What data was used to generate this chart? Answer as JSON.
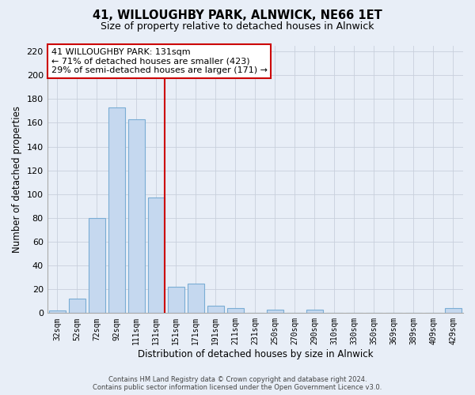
{
  "title": "41, WILLOUGHBY PARK, ALNWICK, NE66 1ET",
  "subtitle": "Size of property relative to detached houses in Alnwick",
  "xlabel": "Distribution of detached houses by size in Alnwick",
  "ylabel": "Number of detached properties",
  "bar_labels": [
    "32sqm",
    "52sqm",
    "72sqm",
    "92sqm",
    "111sqm",
    "131sqm",
    "151sqm",
    "171sqm",
    "191sqm",
    "211sqm",
    "231sqm",
    "250sqm",
    "270sqm",
    "290sqm",
    "310sqm",
    "330sqm",
    "350sqm",
    "369sqm",
    "389sqm",
    "409sqm",
    "429sqm"
  ],
  "bar_values": [
    2,
    12,
    80,
    173,
    163,
    97,
    22,
    25,
    6,
    4,
    0,
    3,
    0,
    3,
    0,
    0,
    0,
    0,
    0,
    0,
    4
  ],
  "bar_color": "#c5d8ef",
  "bar_edge_color": "#7aadd4",
  "vline_color": "#cc0000",
  "annotation_title": "41 WILLOUGHBY PARK: 131sqm",
  "annotation_line1": "← 71% of detached houses are smaller (423)",
  "annotation_line2": "29% of semi-detached houses are larger (171) →",
  "annotation_box_color": "#ffffff",
  "annotation_box_edge_color": "#cc0000",
  "ylim": [
    0,
    225
  ],
  "yticks": [
    0,
    20,
    40,
    60,
    80,
    100,
    120,
    140,
    160,
    180,
    200,
    220
  ],
  "footer_line1": "Contains HM Land Registry data © Crown copyright and database right 2024.",
  "footer_line2": "Contains public sector information licensed under the Open Government Licence v3.0.",
  "background_color": "#e8eef7",
  "plot_background_color": "#e8eef7",
  "grid_color": "#c8d0dc"
}
